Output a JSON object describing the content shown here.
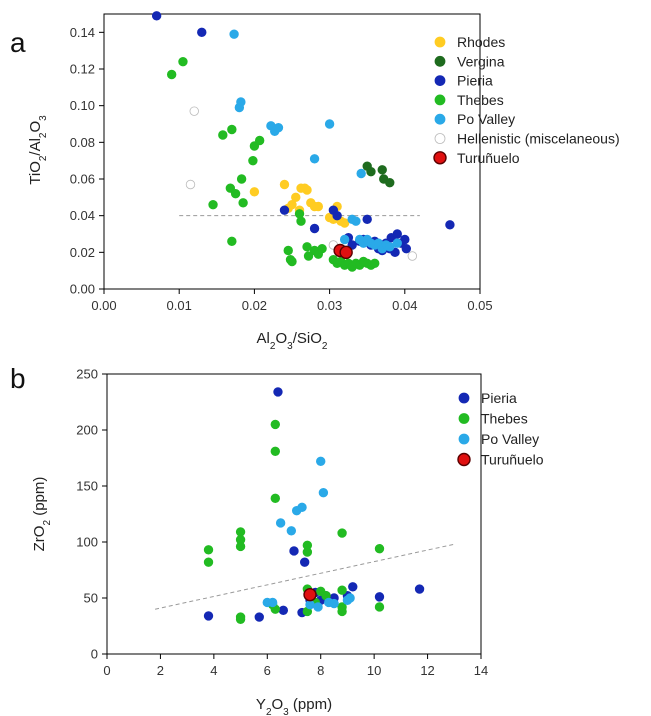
{
  "chart_data": [
    {
      "type": "scatter",
      "panel_label": "a",
      "xlabel": "Al2O3/SiO2",
      "ylabel": "TiO2/Al2O3",
      "xlim": [
        0,
        0.05
      ],
      "ylim": [
        0,
        0.15
      ],
      "xticks": [
        "0.00",
        "0.01",
        "0.02",
        "0.03",
        "0.04",
        "0.05"
      ],
      "yticks": [
        "0.00",
        "0.02",
        "0.04",
        "0.06",
        "0.08",
        "0.10",
        "0.12",
        "0.14"
      ],
      "grid": false,
      "legend_position": "top-right",
      "reference_line": {
        "style": "dashed",
        "points": [
          [
            0.01,
            0.04
          ],
          [
            0.042,
            0.04
          ]
        ]
      },
      "series": [
        {
          "name": "Rhodes",
          "color": "#FFCC22",
          "hollow": false,
          "points": [
            [
              0.02,
              0.053
            ],
            [
              0.024,
              0.057
            ],
            [
              0.0245,
              0.044
            ],
            [
              0.025,
              0.046
            ],
            [
              0.0255,
              0.05
            ],
            [
              0.026,
              0.043
            ],
            [
              0.0262,
              0.055
            ],
            [
              0.0267,
              0.055
            ],
            [
              0.027,
              0.054
            ],
            [
              0.0275,
              0.047
            ],
            [
              0.028,
              0.045
            ],
            [
              0.0285,
              0.045
            ],
            [
              0.03,
              0.039
            ],
            [
              0.0305,
              0.038
            ],
            [
              0.031,
              0.045
            ],
            [
              0.0315,
              0.037
            ],
            [
              0.032,
              0.036
            ]
          ]
        },
        {
          "name": "Vergina",
          "color": "#1E6B1E",
          "hollow": false,
          "points": [
            [
              0.035,
              0.067
            ],
            [
              0.0355,
              0.064
            ],
            [
              0.037,
              0.065
            ],
            [
              0.0372,
              0.06
            ],
            [
              0.038,
              0.058
            ]
          ]
        },
        {
          "name": "Pieria",
          "color": "#1428B4",
          "hollow": false,
          "points": [
            [
              0.007,
              0.149
            ],
            [
              0.013,
              0.14
            ],
            [
              0.024,
              0.043
            ],
            [
              0.028,
              0.033
            ],
            [
              0.0305,
              0.043
            ],
            [
              0.031,
              0.04
            ],
            [
              0.0325,
              0.028
            ],
            [
              0.033,
              0.024
            ],
            [
              0.034,
              0.026
            ],
            [
              0.0345,
              0.027
            ],
            [
              0.035,
              0.038
            ],
            [
              0.0355,
              0.024
            ],
            [
              0.036,
              0.026
            ],
            [
              0.0365,
              0.022
            ],
            [
              0.037,
              0.021
            ],
            [
              0.0375,
              0.025
            ],
            [
              0.038,
              0.022
            ],
            [
              0.0382,
              0.028
            ],
            [
              0.0387,
              0.02
            ],
            [
              0.039,
              0.03
            ],
            [
              0.0395,
              0.025
            ],
            [
              0.04,
              0.027
            ],
            [
              0.0402,
              0.022
            ],
            [
              0.046,
              0.035
            ]
          ]
        },
        {
          "name": "Thebes",
          "color": "#22BB22",
          "hollow": false,
          "points": [
            [
              0.009,
              0.117
            ],
            [
              0.0105,
              0.124
            ],
            [
              0.0145,
              0.046
            ],
            [
              0.0158,
              0.084
            ],
            [
              0.0168,
              0.055
            ],
            [
              0.017,
              0.087
            ],
            [
              0.017,
              0.026
            ],
            [
              0.0175,
              0.052
            ],
            [
              0.0183,
              0.06
            ],
            [
              0.0185,
              0.047
            ],
            [
              0.0198,
              0.07
            ],
            [
              0.02,
              0.078
            ],
            [
              0.0207,
              0.081
            ],
            [
              0.0245,
              0.021
            ],
            [
              0.0248,
              0.016
            ],
            [
              0.025,
              0.015
            ],
            [
              0.026,
              0.041
            ],
            [
              0.0262,
              0.037
            ],
            [
              0.027,
              0.023
            ],
            [
              0.0272,
              0.018
            ],
            [
              0.028,
              0.021
            ],
            [
              0.0285,
              0.019
            ],
            [
              0.029,
              0.022
            ],
            [
              0.0305,
              0.016
            ],
            [
              0.031,
              0.014
            ],
            [
              0.0315,
              0.015
            ],
            [
              0.032,
              0.013
            ],
            [
              0.0325,
              0.014
            ],
            [
              0.033,
              0.012
            ],
            [
              0.0335,
              0.014
            ],
            [
              0.034,
              0.013
            ],
            [
              0.0345,
              0.015
            ],
            [
              0.035,
              0.014
            ],
            [
              0.0355,
              0.013
            ],
            [
              0.036,
              0.014
            ]
          ]
        },
        {
          "name": "Po Valley",
          "color": "#2AA9E8",
          "hollow": false,
          "points": [
            [
              0.0173,
              0.139
            ],
            [
              0.018,
              0.099
            ],
            [
              0.0182,
              0.102
            ],
            [
              0.0222,
              0.089
            ],
            [
              0.0227,
              0.086
            ],
            [
              0.0232,
              0.088
            ],
            [
              0.028,
              0.071
            ],
            [
              0.03,
              0.09
            ],
            [
              0.032,
              0.027
            ],
            [
              0.033,
              0.038
            ],
            [
              0.0335,
              0.037
            ],
            [
              0.034,
              0.027
            ],
            [
              0.0342,
              0.063
            ],
            [
              0.0345,
              0.025
            ],
            [
              0.035,
              0.027
            ],
            [
              0.0355,
              0.025
            ],
            [
              0.036,
              0.024
            ],
            [
              0.0365,
              0.025
            ],
            [
              0.037,
              0.022
            ],
            [
              0.0375,
              0.024
            ],
            [
              0.038,
              0.023
            ],
            [
              0.039,
              0.025
            ]
          ]
        },
        {
          "name": "Hellenistic (miscelaneous)",
          "color": "#BBBBBB",
          "hollow": true,
          "points": [
            [
              0.0115,
              0.057
            ],
            [
              0.012,
              0.097
            ],
            [
              0.0305,
              0.024
            ],
            [
              0.041,
              0.018
            ]
          ]
        },
        {
          "name": "Turuñuelo",
          "color": "#E01010",
          "hollow": false,
          "big": true,
          "points": [
            [
              0.0314,
              0.021
            ],
            [
              0.0322,
              0.02
            ]
          ]
        }
      ]
    },
    {
      "type": "scatter",
      "panel_label": "b",
      "xlabel": "Y2O3 (ppm)",
      "ylabel": "ZrO2 (ppm)",
      "xlim": [
        0,
        14
      ],
      "ylim": [
        0,
        250
      ],
      "xticks": [
        "0",
        "2",
        "4",
        "6",
        "8",
        "10",
        "12",
        "14"
      ],
      "yticks": [
        "0",
        "50",
        "100",
        "150",
        "200",
        "250"
      ],
      "grid": false,
      "legend_position": "top-right",
      "reference_line": {
        "style": "dashed",
        "points": [
          [
            1.8,
            40
          ],
          [
            13.0,
            98
          ]
        ]
      },
      "series": [
        {
          "name": "Pieria",
          "color": "#1428B4",
          "hollow": false,
          "points": [
            [
              3.8,
              34
            ],
            [
              5.7,
              33
            ],
            [
              6.4,
              234
            ],
            [
              6.6,
              39
            ],
            [
              7.0,
              92
            ],
            [
              7.3,
              37
            ],
            [
              7.4,
              82
            ],
            [
              7.6,
              48
            ],
            [
              7.8,
              55
            ],
            [
              8.0,
              48
            ],
            [
              8.2,
              52
            ],
            [
              8.5,
              50
            ],
            [
              9.0,
              52
            ],
            [
              9.2,
              60
            ],
            [
              10.2,
              51
            ],
            [
              11.7,
              58
            ]
          ]
        },
        {
          "name": "Thebes",
          "color": "#22BB22",
          "hollow": false,
          "points": [
            [
              3.8,
              93
            ],
            [
              3.8,
              82
            ],
            [
              5.0,
              109
            ],
            [
              5.0,
              102
            ],
            [
              5.0,
              96
            ],
            [
              5.0,
              33
            ],
            [
              5.0,
              31
            ],
            [
              6.2,
              44
            ],
            [
              6.3,
              40
            ],
            [
              6.3,
              139
            ],
            [
              6.3,
              181
            ],
            [
              6.3,
              205
            ],
            [
              7.5,
              97
            ],
            [
              7.5,
              91
            ],
            [
              7.5,
              58
            ],
            [
              7.5,
              38
            ],
            [
              7.8,
              46
            ],
            [
              8.0,
              56
            ],
            [
              8.2,
              52
            ],
            [
              8.8,
              108
            ],
            [
              8.8,
              57
            ],
            [
              8.8,
              42
            ],
            [
              8.8,
              38
            ],
            [
              10.2,
              94
            ],
            [
              10.2,
              42
            ]
          ]
        },
        {
          "name": "Po Valley",
          "color": "#2AA9E8",
          "hollow": false,
          "points": [
            [
              6.0,
              46
            ],
            [
              6.2,
              46
            ],
            [
              6.5,
              117
            ],
            [
              6.9,
              110
            ],
            [
              7.1,
              128
            ],
            [
              7.3,
              131
            ],
            [
              7.6,
              44
            ],
            [
              7.9,
              42
            ],
            [
              8.0,
              172
            ],
            [
              8.1,
              144
            ],
            [
              8.3,
              46
            ],
            [
              8.5,
              45
            ],
            [
              9.0,
              48
            ],
            [
              9.1,
              50
            ]
          ]
        },
        {
          "name": "Turuñuelo",
          "color": "#E01010",
          "hollow": false,
          "big": true,
          "points": [
            [
              7.6,
              53
            ]
          ]
        }
      ]
    }
  ]
}
